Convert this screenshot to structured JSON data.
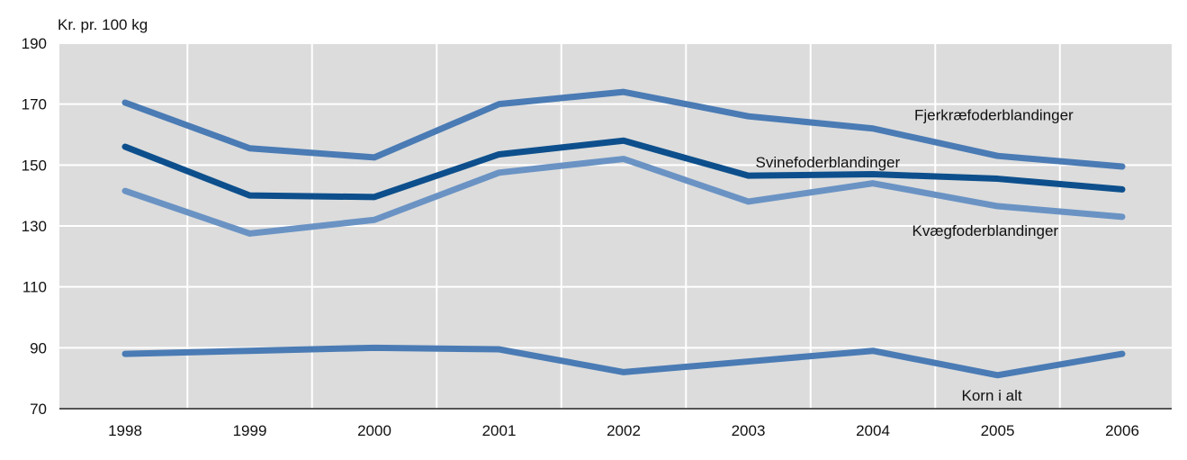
{
  "chart_data": {
    "type": "line",
    "ylabel": "Kr. pr. 100 kg",
    "xlabel": "",
    "ylim": [
      70,
      190
    ],
    "yticks": [
      70,
      90,
      110,
      130,
      150,
      170,
      190
    ],
    "categories": [
      "1998",
      "1999",
      "2000",
      "2001",
      "2002",
      "2003",
      "2004",
      "2005",
      "2006"
    ],
    "grid": true,
    "legend": "inline labels",
    "series": [
      {
        "name": "Fjerkræfoderblandinger",
        "values": [
          170.5,
          155.5,
          152.5,
          170,
          174,
          166,
          162,
          153,
          149.5
        ],
        "color": "#4a7bb4"
      },
      {
        "name": "Svinefoderblandinger",
        "values": [
          156,
          140,
          139.5,
          153.5,
          158,
          146.5,
          147,
          145.5,
          142
        ],
        "color": "#0d4f8c"
      },
      {
        "name": "Kvægfoderblandinger",
        "values": [
          141.5,
          127.5,
          132,
          147.5,
          152,
          138,
          144,
          136.5,
          133
        ],
        "color": "#6a93c4"
      },
      {
        "name": "Korn i alt",
        "values": [
          88,
          89,
          90,
          89.5,
          82,
          85.5,
          89,
          81,
          88
        ],
        "color": "#4a7bb4"
      }
    ]
  },
  "colors": {
    "plot_background": "#dcdcdc",
    "gridline": "#ffffff",
    "axis": "#222222"
  }
}
